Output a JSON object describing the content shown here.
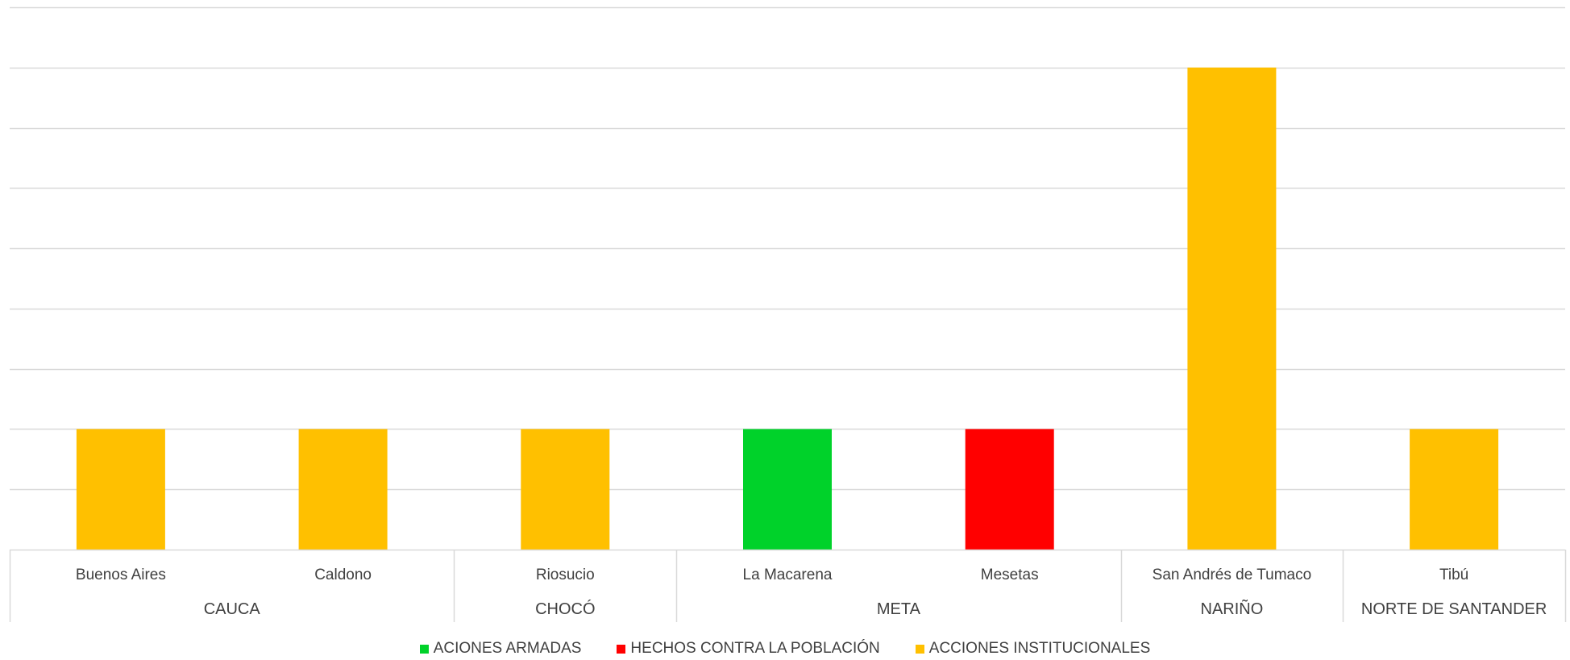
{
  "chart_data": {
    "type": "bar",
    "title": "",
    "xlabel": "",
    "ylabel": "",
    "ylim": [
      0,
      9
    ],
    "grid": true,
    "legend_position": "bottom",
    "groups": [
      {
        "name": "CAUCA",
        "categories": [
          "Buenos Aires",
          "Caldono"
        ]
      },
      {
        "name": "CHOCÓ",
        "categories": [
          "Riosucio"
        ]
      },
      {
        "name": "META",
        "categories": [
          "La Macarena",
          "Mesetas"
        ]
      },
      {
        "name": "NARIÑO",
        "categories": [
          "San Andrés de Tumaco"
        ]
      },
      {
        "name": "NORTE DE SANTANDER",
        "categories": [
          "Tibú"
        ]
      }
    ],
    "categories": [
      "Buenos Aires",
      "Caldono",
      "Riosucio",
      "La Macarena",
      "Mesetas",
      "San Andrés de Tumaco",
      "Tibú"
    ],
    "series": [
      {
        "name": "ACIONES ARMADAS",
        "color": "#00D22A",
        "values": [
          0,
          0,
          0,
          2,
          0,
          0,
          0
        ]
      },
      {
        "name": "HECHOS CONTRA LA POBLACIÓN",
        "color": "#FF0000",
        "values": [
          0,
          0,
          0,
          0,
          2,
          0,
          0
        ]
      },
      {
        "name": "ACCIONES INSTITUCIONALES",
        "color": "#FFC000",
        "values": [
          2,
          2,
          2,
          0,
          0,
          8,
          2
        ]
      }
    ]
  }
}
